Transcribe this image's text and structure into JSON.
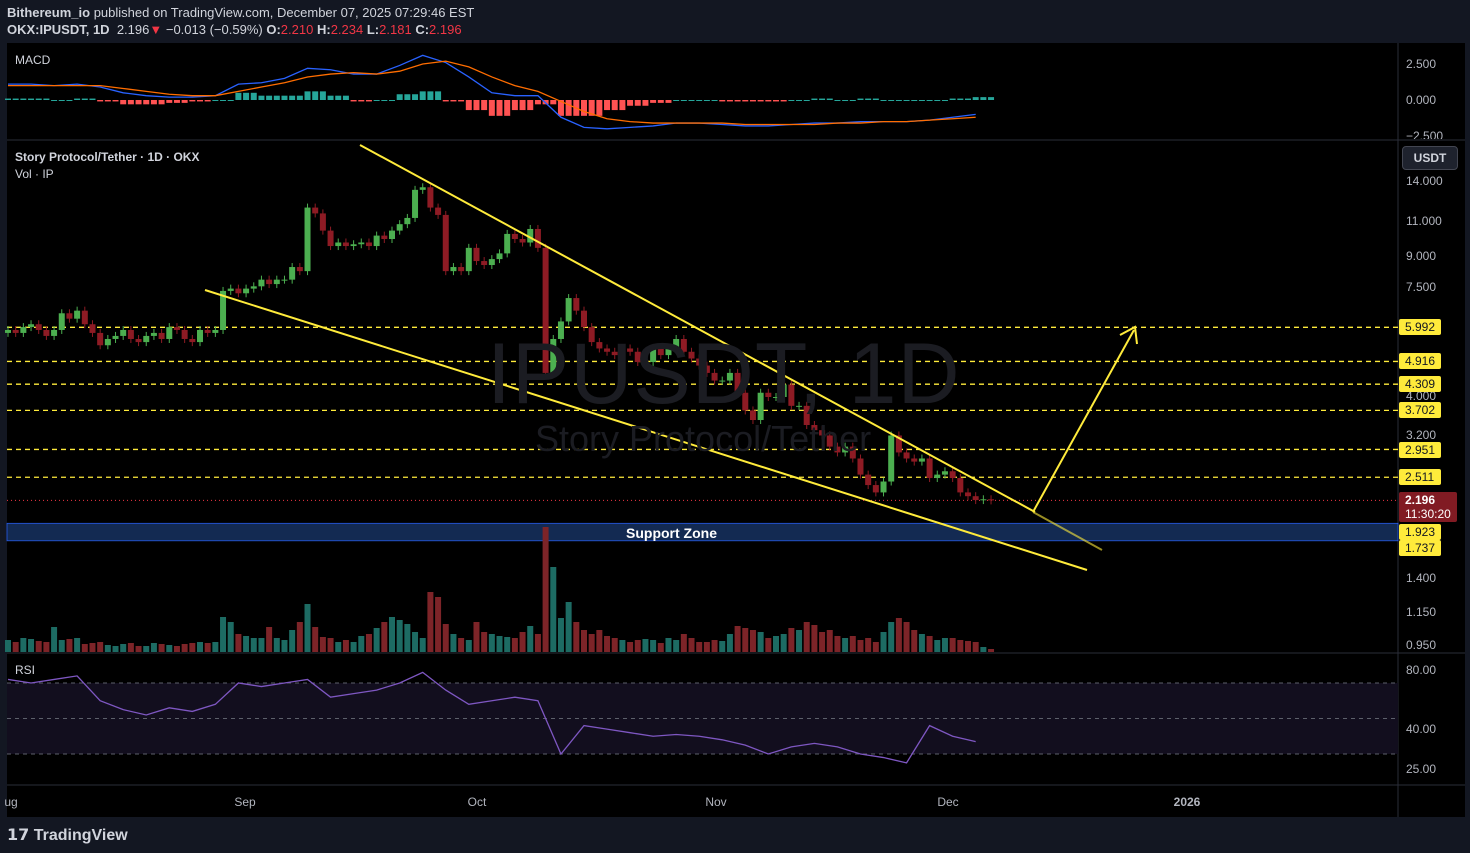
{
  "header": {
    "author": "Bithereum_io",
    "published": "published on TradingView.com, December 07, 2025 07:29:46 EST",
    "symbol": "OKX:IPUSDT, 1D",
    "last": "2.196",
    "change": "−0.013 (−0.59%)",
    "o_label": "O:",
    "o": "2.210",
    "h_label": "H:",
    "h": "2.234",
    "l_label": "L:",
    "l": "2.181",
    "c_label": "C:",
    "c": "2.196"
  },
  "panes": {
    "macd_title": "MACD",
    "main_title": "Story Protocol/Tether · 1D · OKX",
    "vol_title": "Vol · IP",
    "rsi_title": "RSI"
  },
  "watermark": {
    "line1": "IPUSDT, 1D",
    "line2": "Story Protocol/Tether"
  },
  "currency": "USDT",
  "current": {
    "price": "2.196",
    "countdown": "11:30:20"
  },
  "support_zone": {
    "label": "Support Zone",
    "low": 1.737,
    "high": 1.923
  },
  "levels": [
    "5.992",
    "4.916",
    "4.309",
    "3.702",
    "2.951",
    "2.511"
  ],
  "zone_tags": [
    "1.923",
    "1.737"
  ],
  "axis": {
    "price_ticks": [
      "14.000",
      "11.000",
      "9.000",
      "7.500",
      "4.000",
      "3.200",
      "1.400",
      "1.150",
      "0.950"
    ],
    "macd_ticks": [
      "2.500",
      "0.000",
      "−2.500"
    ],
    "rsi_ticks": [
      "80.00",
      "40.00",
      "25.00"
    ],
    "time_ticks": [
      "ug",
      "Sep",
      "Oct",
      "Nov",
      "Dec",
      "2026"
    ]
  },
  "footer": {
    "logo": "TradingView"
  },
  "colors": {
    "up": "#4caf50",
    "down": "#8e1b24",
    "level": "#ffeb3b",
    "macd": "#2962ff",
    "signal": "#ff6d00",
    "rsi": "#7e57c2",
    "zone": "#132a52"
  },
  "chart_data": {
    "type": "candlestick",
    "scale": "log",
    "ylim": [
      0.95,
      14.5
    ],
    "start": "Aug 1",
    "end": "Dec 7",
    "first_open": 5.8,
    "close": [
      5.9,
      5.8,
      6.0,
      6.1,
      5.9,
      5.7,
      5.9,
      6.5,
      6.3,
      6.6,
      6.1,
      5.8,
      5.4,
      5.6,
      5.7,
      5.9,
      5.6,
      5.5,
      5.7,
      5.8,
      5.6,
      6.0,
      5.9,
      5.6,
      5.5,
      5.9,
      5.8,
      5.9,
      7.4,
      7.5,
      7.3,
      7.5,
      7.6,
      7.9,
      7.7,
      7.9,
      7.9,
      8.5,
      8.3,
      12.0,
      11.6,
      10.5,
      9.6,
      9.8,
      9.6,
      9.7,
      9.8,
      9.6,
      10.2,
      10.0,
      10.5,
      10.9,
      11.3,
      13.3,
      13.5,
      12.0,
      11.5,
      8.3,
      8.5,
      8.3,
      9.5,
      8.8,
      8.6,
      8.9,
      9.2,
      10.3,
      10.0,
      9.8,
      10.6,
      9.5,
      4.6,
      5.6,
      6.2,
      7.1,
      6.6,
      6.0,
      5.5,
      5.3,
      5.2,
      5.1,
      5.3,
      5.2,
      4.9,
      4.9,
      5.3,
      5.1,
      5.3,
      5.6,
      5.2,
      5.0,
      4.8,
      4.6,
      4.4,
      4.4,
      4.6,
      4.1,
      3.7,
      3.5,
      4.1,
      4.0,
      4.0,
      4.3,
      3.8,
      3.8,
      3.4,
      3.3,
      3.2,
      3.0,
      2.9,
      3.0,
      2.8,
      2.55,
      2.4,
      2.3,
      2.45,
      3.2,
      2.9,
      2.8,
      2.75,
      2.8,
      2.5,
      2.55,
      2.6,
      2.5,
      2.3,
      2.25,
      2.2,
      2.21,
      2.196
    ],
    "volume": [
      12,
      10,
      14,
      13,
      11,
      10,
      25,
      12,
      13,
      14,
      8,
      9,
      10,
      7,
      6,
      8,
      9,
      6,
      6,
      9,
      8,
      7,
      6,
      8,
      9,
      10,
      9,
      10,
      35,
      30,
      18,
      16,
      14,
      14,
      25,
      14,
      12,
      22,
      30,
      48,
      25,
      15,
      14,
      10,
      12,
      10,
      16,
      18,
      24,
      30,
      35,
      32,
      28,
      20,
      14,
      60,
      55,
      28,
      18,
      14,
      12,
      30,
      20,
      18,
      16,
      15,
      14,
      20,
      26,
      18,
      125,
      85,
      34,
      50,
      30,
      22,
      18,
      22,
      16,
      14,
      12,
      10,
      12,
      13,
      12,
      9,
      14,
      12,
      18,
      14,
      10,
      10,
      12,
      11,
      18,
      26,
      24,
      22,
      20,
      14,
      16,
      18,
      24,
      22,
      30,
      27,
      20,
      22,
      16,
      14,
      16,
      12,
      14,
      10,
      20,
      30,
      34,
      30,
      22,
      18,
      16,
      12,
      14,
      14,
      12,
      11,
      10,
      5,
      3
    ],
    "macd": {
      "step_days": 3,
      "macd": [
        1.1,
        1.1,
        1.0,
        1.1,
        0.9,
        0.5,
        0.3,
        0.2,
        0.2,
        0.3,
        1.1,
        1.2,
        1.5,
        2.2,
        2.1,
        1.8,
        1.8,
        2.4,
        3.1,
        2.6,
        1.6,
        0.5,
        0.3,
        0.3,
        -1.2,
        -1.9,
        -2.0,
        -1.9,
        -1.8,
        -1.6,
        -1.6,
        -1.7,
        -1.8,
        -1.8,
        -1.7,
        -1.6,
        -1.6,
        -1.5,
        -1.5,
        -1.5,
        -1.4,
        -1.2,
        -1.0
      ],
      "signal": [
        1.0,
        1.0,
        1.0,
        1.0,
        1.0,
        0.8,
        0.6,
        0.4,
        0.3,
        0.3,
        0.6,
        0.9,
        1.2,
        1.6,
        1.8,
        1.9,
        1.8,
        2.0,
        2.5,
        2.7,
        2.3,
        1.6,
        1.0,
        0.6,
        -0.1,
        -0.8,
        -1.3,
        -1.5,
        -1.6,
        -1.6,
        -1.6,
        -1.6,
        -1.7,
        -1.7,
        -1.7,
        -1.7,
        -1.6,
        -1.6,
        -1.5,
        -1.5,
        -1.4,
        -1.3,
        -1.2
      ]
    },
    "rsi": {
      "step_days": 3,
      "bands": [
        70,
        50,
        30
      ],
      "values": [
        72,
        70,
        72,
        74,
        60,
        55,
        52,
        56,
        54,
        58,
        70,
        68,
        70,
        72,
        62,
        64,
        66,
        70,
        76,
        66,
        58,
        60,
        62,
        60,
        30,
        46,
        44,
        42,
        40,
        41,
        40,
        38,
        35,
        30,
        34,
        36,
        34,
        30,
        28,
        25,
        46,
        40,
        37
      ]
    }
  }
}
